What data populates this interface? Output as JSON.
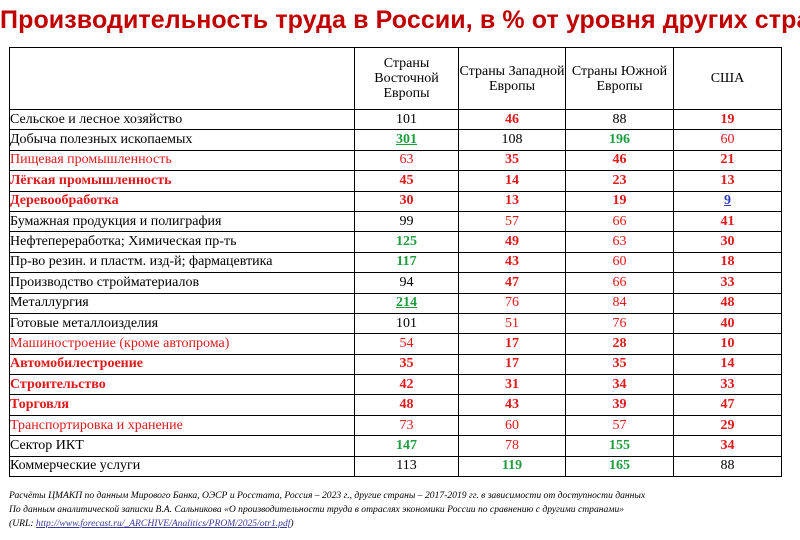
{
  "title": "Производительность труда в России, в % от уровня других стран",
  "columns": [
    "Страны Восточной Европы",
    "Страны Западной Европы",
    "Страны Южной Европы",
    "США"
  ],
  "rows": [
    {
      "name": "Сельское и лесное хозяйство",
      "name_style": "normal",
      "values": [
        {
          "v": "101",
          "s": "black"
        },
        {
          "v": "46",
          "s": "red-bold"
        },
        {
          "v": "88",
          "s": "black"
        },
        {
          "v": "19",
          "s": "red-bold"
        }
      ]
    },
    {
      "name": "Добыча полезных ископаемых",
      "name_style": "normal",
      "values": [
        {
          "v": "301",
          "s": "green-bold-underline"
        },
        {
          "v": "108",
          "s": "black"
        },
        {
          "v": "196",
          "s": "green-bold"
        },
        {
          "v": "60",
          "s": "red"
        }
      ]
    },
    {
      "name": "Пищевая промышленность",
      "name_style": "red",
      "values": [
        {
          "v": "63",
          "s": "red"
        },
        {
          "v": "35",
          "s": "red-bold"
        },
        {
          "v": "46",
          "s": "red-bold"
        },
        {
          "v": "21",
          "s": "red-bold"
        }
      ]
    },
    {
      "name": "Лёгкая промышленность",
      "name_style": "red-bold",
      "values": [
        {
          "v": "45",
          "s": "red-bold"
        },
        {
          "v": "14",
          "s": "red-bold"
        },
        {
          "v": "23",
          "s": "red-bold"
        },
        {
          "v": "13",
          "s": "red-bold"
        }
      ]
    },
    {
      "name": "Деревообработка",
      "name_style": "red-bold",
      "values": [
        {
          "v": "30",
          "s": "red-bold"
        },
        {
          "v": "13",
          "s": "red-bold"
        },
        {
          "v": "19",
          "s": "red-bold"
        },
        {
          "v": "9",
          "s": "blue-bold-underline"
        }
      ]
    },
    {
      "name": "Бумажная продукция и полиграфия",
      "name_style": "normal",
      "values": [
        {
          "v": "99",
          "s": "black"
        },
        {
          "v": "57",
          "s": "red"
        },
        {
          "v": "66",
          "s": "red"
        },
        {
          "v": "41",
          "s": "red-bold"
        }
      ]
    },
    {
      "name": "Нефтепереработка; Химическая пр-ть",
      "name_style": "normal",
      "values": [
        {
          "v": "125",
          "s": "green-bold"
        },
        {
          "v": "49",
          "s": "red-bold"
        },
        {
          "v": "63",
          "s": "red"
        },
        {
          "v": "30",
          "s": "red-bold"
        }
      ]
    },
    {
      "name": "Пр-во резин. и пластм. изд-й; фармацевтика",
      "name_style": "normal",
      "values": [
        {
          "v": "117",
          "s": "green-bold"
        },
        {
          "v": "43",
          "s": "red-bold"
        },
        {
          "v": "60",
          "s": "red"
        },
        {
          "v": "18",
          "s": "red-bold"
        }
      ]
    },
    {
      "name": "Производство стройматериалов",
      "name_style": "normal",
      "values": [
        {
          "v": "94",
          "s": "black"
        },
        {
          "v": "47",
          "s": "red-bold"
        },
        {
          "v": "66",
          "s": "red"
        },
        {
          "v": "33",
          "s": "red-bold"
        }
      ]
    },
    {
      "name": "Металлургия",
      "name_style": "normal",
      "values": [
        {
          "v": "214",
          "s": "green-bold-underline"
        },
        {
          "v": "76",
          "s": "red"
        },
        {
          "v": "84",
          "s": "red"
        },
        {
          "v": "48",
          "s": "red-bold"
        }
      ]
    },
    {
      "name": "Готовые металлоизделия",
      "name_style": "normal",
      "values": [
        {
          "v": "101",
          "s": "black"
        },
        {
          "v": "51",
          "s": "red"
        },
        {
          "v": "76",
          "s": "red"
        },
        {
          "v": "40",
          "s": "red-bold"
        }
      ]
    },
    {
      "name": "Машиностроение (кроме автопрома)",
      "name_style": "red",
      "values": [
        {
          "v": "54",
          "s": "red"
        },
        {
          "v": "17",
          "s": "red-bold"
        },
        {
          "v": "28",
          "s": "red-bold"
        },
        {
          "v": "10",
          "s": "red-bold"
        }
      ]
    },
    {
      "name": "Автомобилестроение",
      "name_style": "red-bold",
      "values": [
        {
          "v": "35",
          "s": "red-bold"
        },
        {
          "v": "17",
          "s": "red-bold"
        },
        {
          "v": "35",
          "s": "red-bold"
        },
        {
          "v": "14",
          "s": "red-bold"
        }
      ]
    },
    {
      "name": "Строительство",
      "name_style": "red-bold",
      "values": [
        {
          "v": "42",
          "s": "red-bold"
        },
        {
          "v": "31",
          "s": "red-bold"
        },
        {
          "v": "34",
          "s": "red-bold"
        },
        {
          "v": "33",
          "s": "red-bold"
        }
      ]
    },
    {
      "name": "Торговля",
      "name_style": "red-bold",
      "values": [
        {
          "v": "48",
          "s": "red-bold"
        },
        {
          "v": "43",
          "s": "red-bold"
        },
        {
          "v": "39",
          "s": "red-bold"
        },
        {
          "v": "47",
          "s": "red-bold"
        }
      ]
    },
    {
      "name": "Транспортировка и хранение",
      "name_style": "red",
      "values": [
        {
          "v": "73",
          "s": "red"
        },
        {
          "v": "60",
          "s": "red"
        },
        {
          "v": "57",
          "s": "red"
        },
        {
          "v": "29",
          "s": "red-bold"
        }
      ]
    },
    {
      "name": "Сектор ИКТ",
      "name_style": "normal",
      "values": [
        {
          "v": "147",
          "s": "green-bold"
        },
        {
          "v": "78",
          "s": "red"
        },
        {
          "v": "155",
          "s": "green-bold"
        },
        {
          "v": "34",
          "s": "red-bold"
        }
      ]
    },
    {
      "name": "Коммерческие услуги",
      "name_style": "normal",
      "values": [
        {
          "v": "113",
          "s": "black"
        },
        {
          "v": "119",
          "s": "green-bold"
        },
        {
          "v": "165",
          "s": "green-bold"
        },
        {
          "v": "88",
          "s": "black"
        }
      ]
    }
  ],
  "footnote": {
    "line1": "Расчёты ЦМАКП по данным Мирового Банка, ОЭСР и Росстата, Россия – 2023 г., другие страны – 2017-2019 гг. в зависимости от доступности данных",
    "line2": "По данным аналитической записки В.А. Сальникова «О производительности труда в отраслях экономики России по сравнению с другими странами»",
    "url_prefix": "(URL: ",
    "url": "http://www.forecast.ru/_ARCHIVE/Analitics/PROM/2025/otr1.pdf",
    "url_suffix": ")"
  },
  "colors": {
    "title": "#c00000",
    "red": "#e0191b",
    "green": "#1e9d3e",
    "blue": "#2e3fbf"
  }
}
